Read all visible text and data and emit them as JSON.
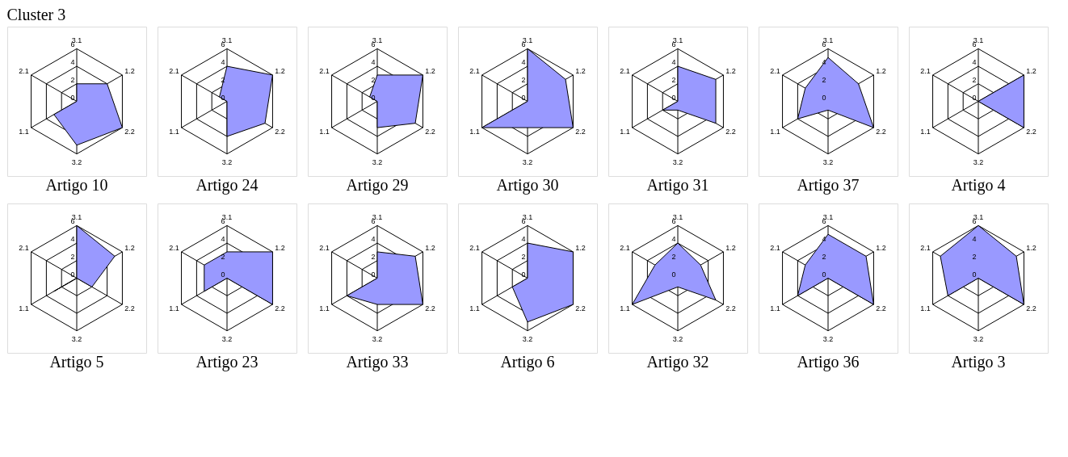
{
  "chart_data": [
    {
      "type": "radar",
      "title": "Artigo 10",
      "annotations": [
        "Cluster 3"
      ],
      "categories": [
        "3.1",
        "1.2",
        "2.2",
        "3.2",
        "1.1",
        "2.1"
      ],
      "ylim": [
        0,
        6
      ],
      "yticks": [
        0,
        2,
        4,
        6
      ],
      "grid": true,
      "series": [
        {
          "color": "#9999ff",
          "values": [
            2,
            4,
            6,
            5,
            3,
            0
          ]
        }
      ]
    },
    {
      "type": "radar",
      "title": "Artigo 24",
      "categories": [
        "3.1",
        "1.2",
        "2.2",
        "3.2",
        "1.1",
        "2.1"
      ],
      "ylim": [
        0,
        6
      ],
      "yticks": [
        0,
        2,
        4,
        6
      ],
      "grid": true,
      "series": [
        {
          "color": "#9999ff",
          "values": [
            4,
            6,
            5,
            4,
            0,
            1
          ]
        }
      ]
    },
    {
      "type": "radar",
      "title": "Artigo 29",
      "categories": [
        "3.1",
        "1.2",
        "2.2",
        "3.2",
        "1.1",
        "2.1"
      ],
      "ylim": [
        0,
        6
      ],
      "yticks": [
        0,
        2,
        4,
        6
      ],
      "grid": true,
      "series": [
        {
          "color": "#9999ff",
          "values": [
            3,
            6,
            5,
            3,
            0,
            1
          ]
        }
      ]
    },
    {
      "type": "radar",
      "title": "Artigo 30",
      "categories": [
        "3.1",
        "1.2",
        "2.2",
        "3.2",
        "1.1",
        "2.1"
      ],
      "ylim": [
        0,
        6
      ],
      "yticks": [
        0,
        2,
        4,
        6
      ],
      "grid": true,
      "series": [
        {
          "color": "#9999ff",
          "values": [
            6,
            5,
            6,
            3,
            6,
            0
          ]
        }
      ]
    },
    {
      "type": "radar",
      "title": "Artigo 31",
      "categories": [
        "3.1",
        "1.2",
        "2.2",
        "3.2",
        "1.1",
        "2.1"
      ],
      "ylim": [
        0,
        6
      ],
      "yticks": [
        0,
        2,
        4,
        6
      ],
      "grid": true,
      "series": [
        {
          "color": "#9999ff",
          "values": [
            4,
            5,
            5,
            1,
            2,
            0
          ]
        }
      ]
    },
    {
      "type": "radar",
      "title": "Artigo 37",
      "categories": [
        "3.1",
        "1.2",
        "2.2",
        "3.2",
        "1.1",
        "2.1"
      ],
      "ylim": [
        0,
        6
      ],
      "yticks": [
        0,
        2,
        4,
        6
      ],
      "grid": true,
      "series": [
        {
          "color": "#9999ff",
          "values": [
            5,
            4,
            6,
            1,
            4,
            3
          ]
        }
      ]
    },
    {
      "type": "radar",
      "title": "Artigo 4",
      "categories": [
        "3.1",
        "1.2",
        "2.2",
        "3.2",
        "1.1",
        "2.1"
      ],
      "ylim": [
        0,
        6
      ],
      "yticks": [
        0,
        2,
        4,
        6
      ],
      "grid": true,
      "series": [
        {
          "color": "#9999ff",
          "values": [
            0,
            6,
            6,
            0,
            0,
            0
          ]
        }
      ]
    },
    {
      "type": "radar",
      "title": "Artigo 5",
      "categories": [
        "3.1",
        "1.2",
        "2.2",
        "3.2",
        "1.1",
        "2.1"
      ],
      "ylim": [
        0,
        6
      ],
      "yticks": [
        0,
        2,
        4,
        6
      ],
      "grid": true,
      "series": [
        {
          "color": "#9999ff",
          "values": [
            6,
            5,
            2,
            0,
            3,
            0
          ]
        }
      ]
    },
    {
      "type": "radar",
      "title": "Artigo 23",
      "categories": [
        "3.1",
        "1.2",
        "2.2",
        "3.2",
        "1.1",
        "2.1"
      ],
      "ylim": [
        0,
        6
      ],
      "yticks": [
        0,
        2,
        4,
        6
      ],
      "grid": true,
      "series": [
        {
          "color": "#9999ff",
          "values": [
            3,
            6,
            6,
            0,
            3,
            3
          ]
        }
      ]
    },
    {
      "type": "radar",
      "title": "Artigo 33",
      "categories": [
        "3.1",
        "1.2",
        "2.2",
        "3.2",
        "1.1",
        "2.1"
      ],
      "ylim": [
        0,
        6
      ],
      "yticks": [
        0,
        2,
        4,
        6
      ],
      "grid": true,
      "series": [
        {
          "color": "#9999ff",
          "values": [
            3,
            5,
            6,
            3,
            4,
            0
          ]
        }
      ]
    },
    {
      "type": "radar",
      "title": "Artigo 6",
      "categories": [
        "3.1",
        "1.2",
        "2.2",
        "3.2",
        "1.1",
        "2.1"
      ],
      "ylim": [
        0,
        6
      ],
      "yticks": [
        0,
        2,
        4,
        6
      ],
      "grid": true,
      "series": [
        {
          "color": "#9999ff",
          "values": [
            4,
            6,
            6,
            5,
            2,
            0
          ]
        }
      ]
    },
    {
      "type": "radar",
      "title": "Artigo 32",
      "categories": [
        "3.1",
        "1.2",
        "2.2",
        "3.2",
        "1.1",
        "2.1"
      ],
      "ylim": [
        0,
        6
      ],
      "yticks": [
        0,
        2,
        4,
        6
      ],
      "grid": true,
      "series": [
        {
          "color": "#9999ff",
          "values": [
            4,
            3,
            5,
            1,
            6,
            3
          ]
        }
      ]
    },
    {
      "type": "radar",
      "title": "Artigo 36",
      "categories": [
        "3.1",
        "1.2",
        "2.2",
        "3.2",
        "1.1",
        "2.1"
      ],
      "ylim": [
        0,
        6
      ],
      "yticks": [
        0,
        2,
        4,
        6
      ],
      "grid": true,
      "series": [
        {
          "color": "#9999ff",
          "values": [
            5,
            5,
            6,
            0,
            4,
            3
          ]
        }
      ]
    },
    {
      "type": "radar",
      "title": "Artigo 3",
      "categories": [
        "3.1",
        "1.2",
        "2.2",
        "3.2",
        "1.1",
        "2.1"
      ],
      "ylim": [
        0,
        6
      ],
      "yticks": [
        0,
        2,
        4,
        6
      ],
      "grid": true,
      "series": [
        {
          "color": "#9999ff",
          "values": [
            6,
            5,
            6,
            0,
            4,
            5
          ]
        }
      ]
    }
  ]
}
